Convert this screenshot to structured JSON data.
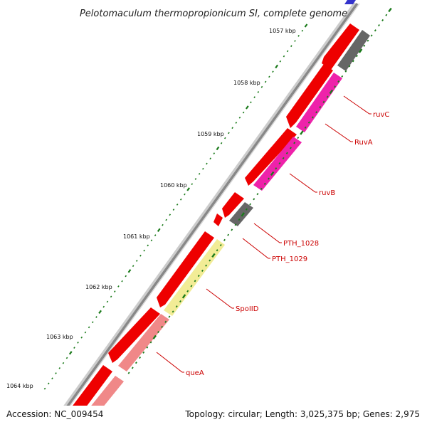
{
  "title": "Pelotomaculum thermopropionicum SI, complete genome",
  "footer": {
    "accession": "Accession: NC_009454",
    "summary": "Topology: circular; Length: 3,025,375 bp; Genes: 2,975"
  },
  "ticks": [
    {
      "kbp": 1057,
      "label": "1057 kbp"
    },
    {
      "kbp": 1058,
      "label": "1058 kbp"
    },
    {
      "kbp": 1059,
      "label": "1059 kbp"
    },
    {
      "kbp": 1060,
      "label": "1060 kbp"
    },
    {
      "kbp": 1061,
      "label": "1061 kbp"
    },
    {
      "kbp": 1062,
      "label": "1062 kbp"
    },
    {
      "kbp": 1063,
      "label": "1063 kbp"
    },
    {
      "kbp": 1064,
      "label": "1064 kbp"
    }
  ],
  "genes": [
    {
      "name": "ruvC",
      "label": "ruvC"
    },
    {
      "name": "RuvA",
      "label": "RuvA"
    },
    {
      "name": "ruvB",
      "label": "ruvB"
    },
    {
      "name": "PTH_1028",
      "label": "PTH_1028"
    },
    {
      "name": "PTH_1029",
      "label": "PTH_1029"
    },
    {
      "name": "SpoIID",
      "label": "SpoIID"
    },
    {
      "name": "queA",
      "label": "queA"
    }
  ],
  "colors": {
    "forward_cds": "#ee0000",
    "magenta_cds": "#ee22aa",
    "gray_cds": "#666666",
    "yellow_cds": "#f2ec96",
    "salmon_cds": "#f08888",
    "backbone": "#888888",
    "tick_green": "#1a7a1a",
    "label_red": "#cc0000"
  }
}
